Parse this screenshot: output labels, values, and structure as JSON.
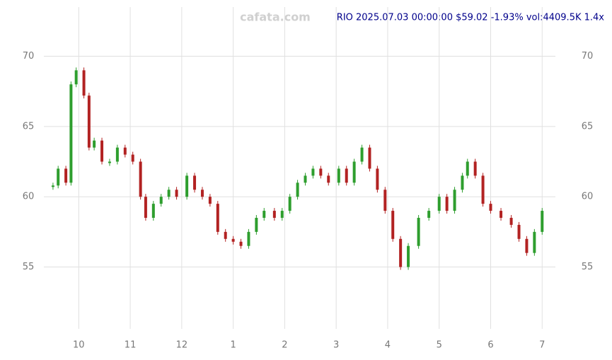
{
  "chart_data": {
    "type": "candlestick",
    "title": "RIO 2025.07.03 00:00:00 $59.02 -1.93% vol:4409.5K 1.4x",
    "watermark": "cafata.com",
    "x": [
      9.5,
      9.6,
      9.75,
      9.85,
      9.95,
      10.1,
      10.2,
      10.3,
      10.45,
      10.6,
      10.75,
      10.9,
      11.05,
      11.2,
      11.3,
      11.45,
      11.6,
      11.75,
      11.9,
      12.1,
      12.25,
      12.4,
      12.55,
      12.7,
      12.85,
      13.0,
      13.15,
      13.3,
      13.45,
      13.6,
      13.8,
      13.95,
      14.1,
      14.25,
      14.4,
      14.55,
      14.7,
      14.85,
      15.05,
      15.2,
      15.35,
      15.5,
      15.65,
      15.8,
      15.95,
      16.1,
      16.25,
      16.4,
      16.6,
      16.8,
      17.0,
      17.15,
      17.3,
      17.45,
      17.55,
      17.7,
      17.85,
      18.0,
      18.2,
      18.4,
      18.55,
      18.7,
      18.85,
      19.0
    ],
    "values": [
      60.8,
      62,
      61,
      68,
      69,
      67.2,
      63.5,
      64,
      62.5,
      62.5,
      63.5,
      63,
      62.5,
      60,
      58.5,
      59.5,
      60,
      60.5,
      60,
      61.5,
      60.5,
      60,
      59.5,
      57.5,
      57,
      56.8,
      56.5,
      57.5,
      58.5,
      59,
      58.5,
      59,
      60,
      61,
      61.5,
      62,
      61.5,
      61,
      62,
      61,
      62.5,
      63.5,
      62,
      60.5,
      59,
      57,
      55,
      56.5,
      58.5,
      59,
      60,
      59,
      60.5,
      61.5,
      62.5,
      61.5,
      59.5,
      59,
      58.5,
      58,
      57,
      56,
      57.5,
      59
    ],
    "up_color": "#2e9e2e",
    "down_color": "#b22222",
    "xlim": [
      9.46,
      19.12
    ],
    "xticks": [
      10,
      11,
      12,
      {
        "value": 13,
        "label": "1"
      },
      {
        "value": 14,
        "label": "2"
      },
      {
        "value": 15,
        "label": "3"
      },
      {
        "value": 16,
        "label": "4"
      },
      {
        "value": 17,
        "label": "5"
      },
      {
        "value": 18,
        "label": "6"
      },
      {
        "value": 19,
        "label": "7"
      }
    ],
    "ylim": [
      51.1,
      73.5
    ],
    "yticks": [
      55,
      60,
      65,
      70
    ],
    "grid": true
  }
}
